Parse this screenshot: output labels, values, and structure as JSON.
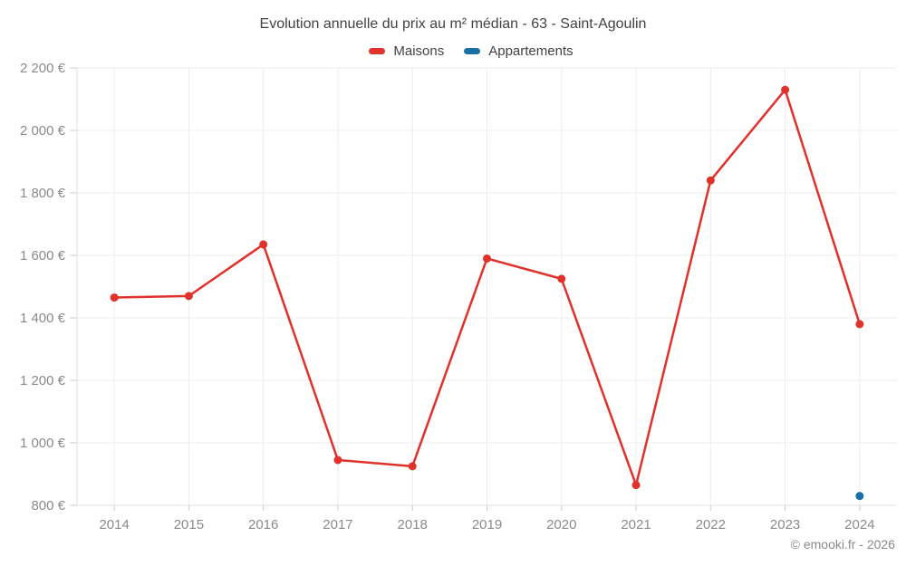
{
  "header": {
    "title": "Evolution annuelle du prix au m² médian - 63 - Saint-Agoulin"
  },
  "footer": {
    "copyright": "© emooki.fr - 2026"
  },
  "colors": {
    "maisons": "#e0312b",
    "appartements": "#1a6fa5",
    "grid": "#ededed",
    "axis": "#e2e2e2",
    "tick": "#cccccc",
    "title_text": "#424242",
    "axis_text": "#8a8a8a"
  },
  "chart_data": {
    "type": "line",
    "title": "Evolution annuelle du prix au m² médian - 63 - Saint-Agoulin",
    "categories": [
      "2014",
      "2015",
      "2016",
      "2017",
      "2018",
      "2019",
      "2020",
      "2021",
      "2022",
      "2023",
      "2024"
    ],
    "series": [
      {
        "name": "Maisons",
        "color": "#e0312b",
        "values": [
          1465,
          1470,
          1635,
          945,
          925,
          1590,
          1525,
          865,
          1840,
          2130,
          1380
        ]
      },
      {
        "name": "Appartements",
        "color": "#1a6fa5",
        "values": [
          null,
          null,
          null,
          null,
          null,
          null,
          null,
          null,
          null,
          null,
          830
        ]
      }
    ],
    "xlabel": "",
    "ylabel": "",
    "ylim": [
      800,
      2200
    ],
    "y_ticks": [
      {
        "value": 800,
        "label": "800 €"
      },
      {
        "value": 1000,
        "label": "1 000 €"
      },
      {
        "value": 1200,
        "label": "1 200 €"
      },
      {
        "value": 1400,
        "label": "1 400 €"
      },
      {
        "value": 1600,
        "label": "1 600 €"
      },
      {
        "value": 1800,
        "label": "1 800 €"
      },
      {
        "value": 2000,
        "label": "2 000 €"
      },
      {
        "value": 2200,
        "label": "2 200 €"
      }
    ],
    "grid": true,
    "legend_position": "top",
    "marker": "circle"
  }
}
